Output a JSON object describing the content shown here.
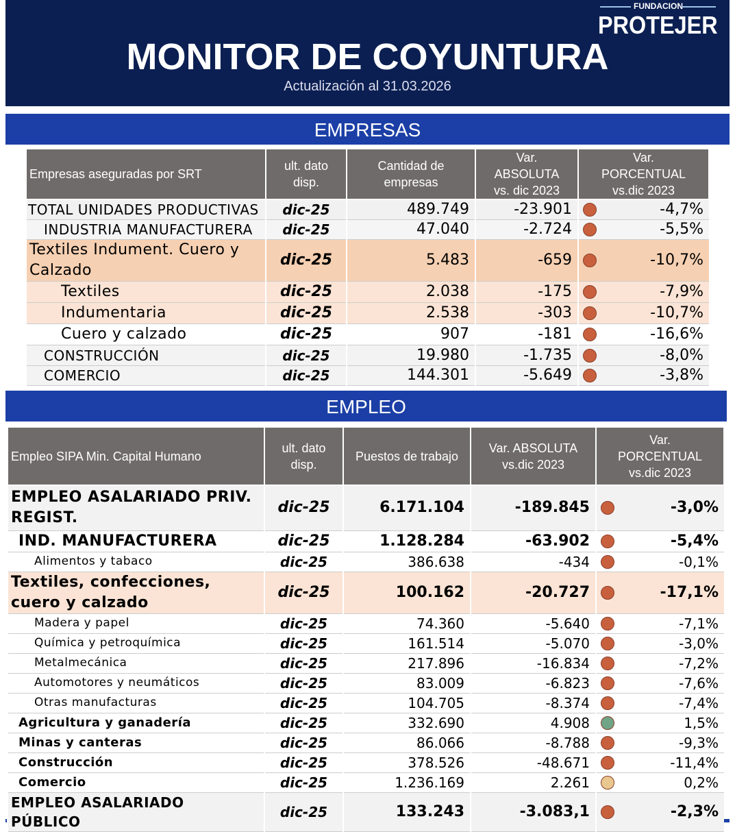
{
  "header": {
    "logo_small": "FUNDACION",
    "logo": "PROTEJER",
    "title": "MONITOR DE COYUNTURA",
    "subtitle": "Actualización al 31.03.2026"
  },
  "sections": [
    {
      "title": "EMPRESAS",
      "columns": [
        "Empresas aseguradas por SRT",
        "ult. dato\ndisp.",
        "Cantidad de\nempresas",
        "Var.\nABSOLUTA\nvs. dic 2023",
        "Var.\nPORCENTUAL\nvs.dic 2023"
      ],
      "rows": [
        [
          "TOTAL UNIDADES PRODUCTIVAS",
          "dic-25",
          "489.749",
          "-23.901",
          "-4,7%"
        ],
        [
          "INDUSTRIA MANUFACTURERA",
          "dic-25",
          "47.040",
          "-2.724",
          "-5,5%"
        ],
        [
          "Textiles Indument. Cuero y Calzado",
          "dic-25",
          "5.483",
          "-659",
          "-10,7%"
        ],
        [
          "Textiles",
          "dic-25",
          "2.038",
          "-175",
          "-7,9%"
        ],
        [
          "Indumentaria",
          "dic-25",
          "2.538",
          "-303",
          "-10,7%"
        ],
        [
          "Cuero y calzado",
          "dic-25",
          "907",
          "-181",
          "-16,6%"
        ],
        [
          "CONSTRUCCIÓN",
          "dic-25",
          "19.980",
          "-1.735",
          "-8,0%"
        ],
        [
          "COMERCIO",
          "dic-25",
          "144.301",
          "-5.649",
          "-3,8%"
        ]
      ],
      "dot_colors": [
        "#c8603e",
        "#c8603e",
        "#c8603e",
        "#c8603e",
        "#c8603e",
        "#c8603e",
        "#c8603e",
        "#c8603e"
      ]
    },
    {
      "title": "EMPLEO",
      "columns": [
        "Empleo SIPA Min. Capital Humano",
        "ult. dato\ndisp.",
        "Puestos de trabajo",
        "Var. ABSOLUTA\nvs.dic 2023",
        "Var.\nPORCENTUAL\nvs.dic 2023"
      ],
      "rows": [
        [
          "EMPLEO ASALARIADO PRIV. REGIST.",
          "dic-25",
          "6.171.104",
          "-189.845",
          "-3,0%"
        ],
        [
          "IND. MANUFACTURERA",
          "dic-25",
          "1.128.284",
          "-63.902",
          "-5,4%"
        ],
        [
          "Alimentos y tabaco",
          "dic-25",
          "386.638",
          "-434",
          "-0,1%"
        ],
        [
          "Textiles, confecciones, cuero y calzado",
          "dic-25",
          "100.162",
          "-20.727",
          "-17,1%"
        ],
        [
          "Madera y papel",
          "dic-25",
          "74.360",
          "-5.640",
          "-7,1%"
        ],
        [
          "Química y petroquímica",
          "dic-25",
          "161.514",
          "-5.070",
          "-3,0%"
        ],
        [
          "Metalmecánica",
          "dic-25",
          "217.896",
          "-16.834",
          "-7,2%"
        ],
        [
          "Automotores y neumáticos",
          "dic-25",
          "83.009",
          "-6.823",
          "-7,6%"
        ],
        [
          "Otras manufacturas",
          "dic-25",
          "104.705",
          "-8.374",
          "-7,4%"
        ],
        [
          "Agricultura y ganadería",
          "dic-25",
          "332.690",
          "4.908",
          "1,5%"
        ],
        [
          "Minas y canteras",
          "dic-25",
          "86.066",
          "-8.788",
          "-9,3%"
        ],
        [
          "Construcción",
          "dic-25",
          "378.526",
          "-48.671",
          "-11,4%"
        ],
        [
          "Comercio",
          "dic-25",
          "1.236.169",
          "2.261",
          "0,2%"
        ],
        [
          "EMPLEO ASALARIADO PÚBLICO",
          "dic-25",
          "133.243",
          "-3.083,1",
          "-2,3%"
        ]
      ],
      "dot_colors": [
        "#c8603e",
        "#c8603e",
        "#c8603e",
        "#c8603e",
        "#c8603e",
        "#c8603e",
        "#c8603e",
        "#c8603e",
        "#c8603e",
        "#6fa487",
        "#c8603e",
        "#c8603e",
        "#e8c88e",
        "#c8603e"
      ]
    }
  ]
}
